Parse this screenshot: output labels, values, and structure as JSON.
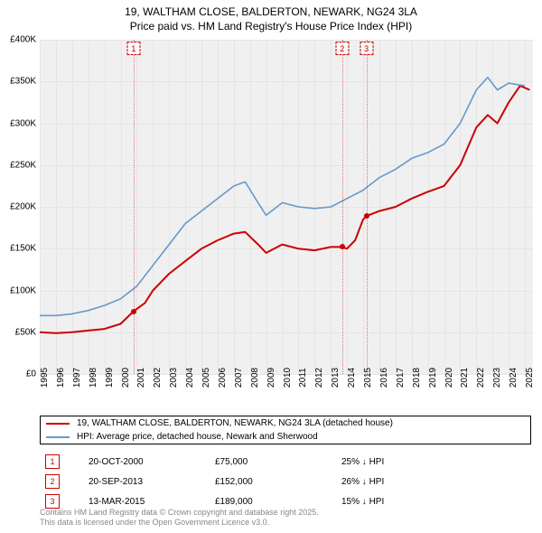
{
  "title_line1": "19, WALTHAM CLOSE, BALDERTON, NEWARK, NG24 3LA",
  "title_line2": "Price paid vs. HM Land Registry's House Price Index (HPI)",
  "chart": {
    "type": "line",
    "background_color": "#f0f0f0",
    "grid_color": "#e5e5e5",
    "x_min": 1995,
    "x_max": 2025.5,
    "y_min": 0,
    "y_max": 400000,
    "y_ticks": [
      0,
      50000,
      100000,
      150000,
      200000,
      250000,
      300000,
      350000,
      400000
    ],
    "y_tick_labels": [
      "£0",
      "£50K",
      "£100K",
      "£150K",
      "£200K",
      "£250K",
      "£300K",
      "£350K",
      "£400K"
    ],
    "x_ticks": [
      1995,
      1996,
      1997,
      1998,
      1999,
      2000,
      2001,
      2002,
      2003,
      2004,
      2005,
      2006,
      2007,
      2008,
      2009,
      2010,
      2011,
      2012,
      2013,
      2014,
      2015,
      2016,
      2017,
      2018,
      2019,
      2020,
      2021,
      2022,
      2023,
      2024,
      2025
    ],
    "series": [
      {
        "name": "price_paid",
        "color": "#cc0000",
        "width": 2,
        "points": [
          [
            1995,
            50000
          ],
          [
            1996,
            49000
          ],
          [
            1997,
            50000
          ],
          [
            1998,
            52000
          ],
          [
            1999,
            54000
          ],
          [
            2000,
            60000
          ],
          [
            2000.8,
            75000
          ],
          [
            2001.5,
            85000
          ],
          [
            2002,
            100000
          ],
          [
            2003,
            120000
          ],
          [
            2004,
            135000
          ],
          [
            2005,
            150000
          ],
          [
            2006,
            160000
          ],
          [
            2007,
            168000
          ],
          [
            2007.7,
            170000
          ],
          [
            2008.5,
            155000
          ],
          [
            2009,
            145000
          ],
          [
            2010,
            155000
          ],
          [
            2011,
            150000
          ],
          [
            2012,
            148000
          ],
          [
            2013,
            152000
          ],
          [
            2013.7,
            152000
          ],
          [
            2014,
            150000
          ],
          [
            2014.5,
            160000
          ],
          [
            2015,
            185000
          ],
          [
            2015.2,
            189000
          ],
          [
            2016,
            195000
          ],
          [
            2017,
            200000
          ],
          [
            2018,
            210000
          ],
          [
            2019,
            218000
          ],
          [
            2020,
            225000
          ],
          [
            2021,
            250000
          ],
          [
            2022,
            295000
          ],
          [
            2022.7,
            310000
          ],
          [
            2023.3,
            300000
          ],
          [
            2024,
            325000
          ],
          [
            2024.7,
            345000
          ],
          [
            2025.3,
            340000
          ]
        ]
      },
      {
        "name": "hpi",
        "color": "#6699cc",
        "width": 1.6,
        "points": [
          [
            1995,
            70000
          ],
          [
            1996,
            70000
          ],
          [
            1997,
            72000
          ],
          [
            1998,
            76000
          ],
          [
            1999,
            82000
          ],
          [
            2000,
            90000
          ],
          [
            2001,
            105000
          ],
          [
            2002,
            130000
          ],
          [
            2003,
            155000
          ],
          [
            2004,
            180000
          ],
          [
            2005,
            195000
          ],
          [
            2006,
            210000
          ],
          [
            2007,
            225000
          ],
          [
            2007.7,
            230000
          ],
          [
            2008.5,
            205000
          ],
          [
            2009,
            190000
          ],
          [
            2010,
            205000
          ],
          [
            2011,
            200000
          ],
          [
            2012,
            198000
          ],
          [
            2013,
            200000
          ],
          [
            2014,
            210000
          ],
          [
            2015,
            220000
          ],
          [
            2016,
            235000
          ],
          [
            2017,
            245000
          ],
          [
            2018,
            258000
          ],
          [
            2019,
            265000
          ],
          [
            2020,
            275000
          ],
          [
            2021,
            300000
          ],
          [
            2022,
            340000
          ],
          [
            2022.7,
            355000
          ],
          [
            2023.3,
            340000
          ],
          [
            2024,
            348000
          ],
          [
            2025,
            345000
          ]
        ]
      }
    ],
    "sale_markers": [
      {
        "label": "1",
        "year": 2000.8,
        "price": 75000
      },
      {
        "label": "2",
        "year": 2013.7,
        "price": 152000
      },
      {
        "label": "3",
        "year": 2015.2,
        "price": 189000
      }
    ]
  },
  "legend": {
    "items": [
      {
        "color": "#cc0000",
        "label": "19, WALTHAM CLOSE, BALDERTON, NEWARK, NG24 3LA (detached house)"
      },
      {
        "color": "#6699cc",
        "label": "HPI: Average price, detached house, Newark and Sherwood"
      }
    ]
  },
  "marker_table": {
    "rows": [
      {
        "num": "1",
        "color": "#cc0000",
        "date": "20-OCT-2000",
        "price": "£75,000",
        "pct": "25% ↓ HPI"
      },
      {
        "num": "2",
        "color": "#cc0000",
        "date": "20-SEP-2013",
        "price": "£152,000",
        "pct": "26% ↓ HPI"
      },
      {
        "num": "3",
        "color": "#cc0000",
        "date": "13-MAR-2015",
        "price": "£189,000",
        "pct": "15% ↓ HPI"
      }
    ]
  },
  "footer_line1": "Contains HM Land Registry data © Crown copyright and database right 2025.",
  "footer_line2": "This data is licensed under the Open Government Licence v3.0."
}
